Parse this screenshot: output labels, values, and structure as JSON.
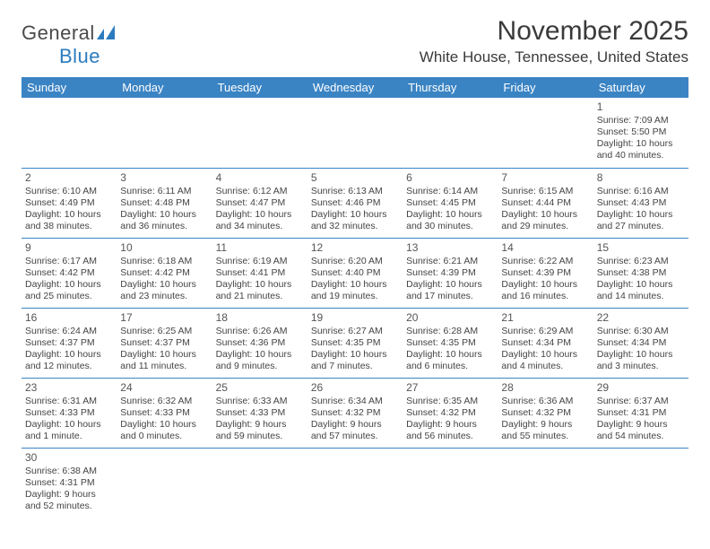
{
  "logo": {
    "text1": "General",
    "text2": "Blue"
  },
  "title": "November 2025",
  "location": "White House, Tennessee, United States",
  "colors": {
    "header_bg": "#3b84c4",
    "header_text": "#ffffff",
    "body_text": "#444444",
    "rule": "#3b84c4",
    "logo_gray": "#4a4a4a",
    "logo_blue": "#2b7bbf",
    "page_bg": "#ffffff"
  },
  "typography": {
    "title_fontsize": 30,
    "location_fontsize": 17,
    "header_fontsize": 13,
    "cell_fontsize": 10.5,
    "daynum_fontsize": 12
  },
  "weekdays": [
    "Sunday",
    "Monday",
    "Tuesday",
    "Wednesday",
    "Thursday",
    "Friday",
    "Saturday"
  ],
  "grid": [
    [
      null,
      null,
      null,
      null,
      null,
      null,
      {
        "n": "1",
        "sunrise": "Sunrise: 7:09 AM",
        "sunset": "Sunset: 5:50 PM",
        "daylight": "Daylight: 10 hours and 40 minutes."
      }
    ],
    [
      {
        "n": "2",
        "sunrise": "Sunrise: 6:10 AM",
        "sunset": "Sunset: 4:49 PM",
        "daylight": "Daylight: 10 hours and 38 minutes."
      },
      {
        "n": "3",
        "sunrise": "Sunrise: 6:11 AM",
        "sunset": "Sunset: 4:48 PM",
        "daylight": "Daylight: 10 hours and 36 minutes."
      },
      {
        "n": "4",
        "sunrise": "Sunrise: 6:12 AM",
        "sunset": "Sunset: 4:47 PM",
        "daylight": "Daylight: 10 hours and 34 minutes."
      },
      {
        "n": "5",
        "sunrise": "Sunrise: 6:13 AM",
        "sunset": "Sunset: 4:46 PM",
        "daylight": "Daylight: 10 hours and 32 minutes."
      },
      {
        "n": "6",
        "sunrise": "Sunrise: 6:14 AM",
        "sunset": "Sunset: 4:45 PM",
        "daylight": "Daylight: 10 hours and 30 minutes."
      },
      {
        "n": "7",
        "sunrise": "Sunrise: 6:15 AM",
        "sunset": "Sunset: 4:44 PM",
        "daylight": "Daylight: 10 hours and 29 minutes."
      },
      {
        "n": "8",
        "sunrise": "Sunrise: 6:16 AM",
        "sunset": "Sunset: 4:43 PM",
        "daylight": "Daylight: 10 hours and 27 minutes."
      }
    ],
    [
      {
        "n": "9",
        "sunrise": "Sunrise: 6:17 AM",
        "sunset": "Sunset: 4:42 PM",
        "daylight": "Daylight: 10 hours and 25 minutes."
      },
      {
        "n": "10",
        "sunrise": "Sunrise: 6:18 AM",
        "sunset": "Sunset: 4:42 PM",
        "daylight": "Daylight: 10 hours and 23 minutes."
      },
      {
        "n": "11",
        "sunrise": "Sunrise: 6:19 AM",
        "sunset": "Sunset: 4:41 PM",
        "daylight": "Daylight: 10 hours and 21 minutes."
      },
      {
        "n": "12",
        "sunrise": "Sunrise: 6:20 AM",
        "sunset": "Sunset: 4:40 PM",
        "daylight": "Daylight: 10 hours and 19 minutes."
      },
      {
        "n": "13",
        "sunrise": "Sunrise: 6:21 AM",
        "sunset": "Sunset: 4:39 PM",
        "daylight": "Daylight: 10 hours and 17 minutes."
      },
      {
        "n": "14",
        "sunrise": "Sunrise: 6:22 AM",
        "sunset": "Sunset: 4:39 PM",
        "daylight": "Daylight: 10 hours and 16 minutes."
      },
      {
        "n": "15",
        "sunrise": "Sunrise: 6:23 AM",
        "sunset": "Sunset: 4:38 PM",
        "daylight": "Daylight: 10 hours and 14 minutes."
      }
    ],
    [
      {
        "n": "16",
        "sunrise": "Sunrise: 6:24 AM",
        "sunset": "Sunset: 4:37 PM",
        "daylight": "Daylight: 10 hours and 12 minutes."
      },
      {
        "n": "17",
        "sunrise": "Sunrise: 6:25 AM",
        "sunset": "Sunset: 4:37 PM",
        "daylight": "Daylight: 10 hours and 11 minutes."
      },
      {
        "n": "18",
        "sunrise": "Sunrise: 6:26 AM",
        "sunset": "Sunset: 4:36 PM",
        "daylight": "Daylight: 10 hours and 9 minutes."
      },
      {
        "n": "19",
        "sunrise": "Sunrise: 6:27 AM",
        "sunset": "Sunset: 4:35 PM",
        "daylight": "Daylight: 10 hours and 7 minutes."
      },
      {
        "n": "20",
        "sunrise": "Sunrise: 6:28 AM",
        "sunset": "Sunset: 4:35 PM",
        "daylight": "Daylight: 10 hours and 6 minutes."
      },
      {
        "n": "21",
        "sunrise": "Sunrise: 6:29 AM",
        "sunset": "Sunset: 4:34 PM",
        "daylight": "Daylight: 10 hours and 4 minutes."
      },
      {
        "n": "22",
        "sunrise": "Sunrise: 6:30 AM",
        "sunset": "Sunset: 4:34 PM",
        "daylight": "Daylight: 10 hours and 3 minutes."
      }
    ],
    [
      {
        "n": "23",
        "sunrise": "Sunrise: 6:31 AM",
        "sunset": "Sunset: 4:33 PM",
        "daylight": "Daylight: 10 hours and 1 minute."
      },
      {
        "n": "24",
        "sunrise": "Sunrise: 6:32 AM",
        "sunset": "Sunset: 4:33 PM",
        "daylight": "Daylight: 10 hours and 0 minutes."
      },
      {
        "n": "25",
        "sunrise": "Sunrise: 6:33 AM",
        "sunset": "Sunset: 4:33 PM",
        "daylight": "Daylight: 9 hours and 59 minutes."
      },
      {
        "n": "26",
        "sunrise": "Sunrise: 6:34 AM",
        "sunset": "Sunset: 4:32 PM",
        "daylight": "Daylight: 9 hours and 57 minutes."
      },
      {
        "n": "27",
        "sunrise": "Sunrise: 6:35 AM",
        "sunset": "Sunset: 4:32 PM",
        "daylight": "Daylight: 9 hours and 56 minutes."
      },
      {
        "n": "28",
        "sunrise": "Sunrise: 6:36 AM",
        "sunset": "Sunset: 4:32 PM",
        "daylight": "Daylight: 9 hours and 55 minutes."
      },
      {
        "n": "29",
        "sunrise": "Sunrise: 6:37 AM",
        "sunset": "Sunset: 4:31 PM",
        "daylight": "Daylight: 9 hours and 54 minutes."
      }
    ],
    [
      {
        "n": "30",
        "sunrise": "Sunrise: 6:38 AM",
        "sunset": "Sunset: 4:31 PM",
        "daylight": "Daylight: 9 hours and 52 minutes."
      },
      null,
      null,
      null,
      null,
      null,
      null
    ]
  ]
}
